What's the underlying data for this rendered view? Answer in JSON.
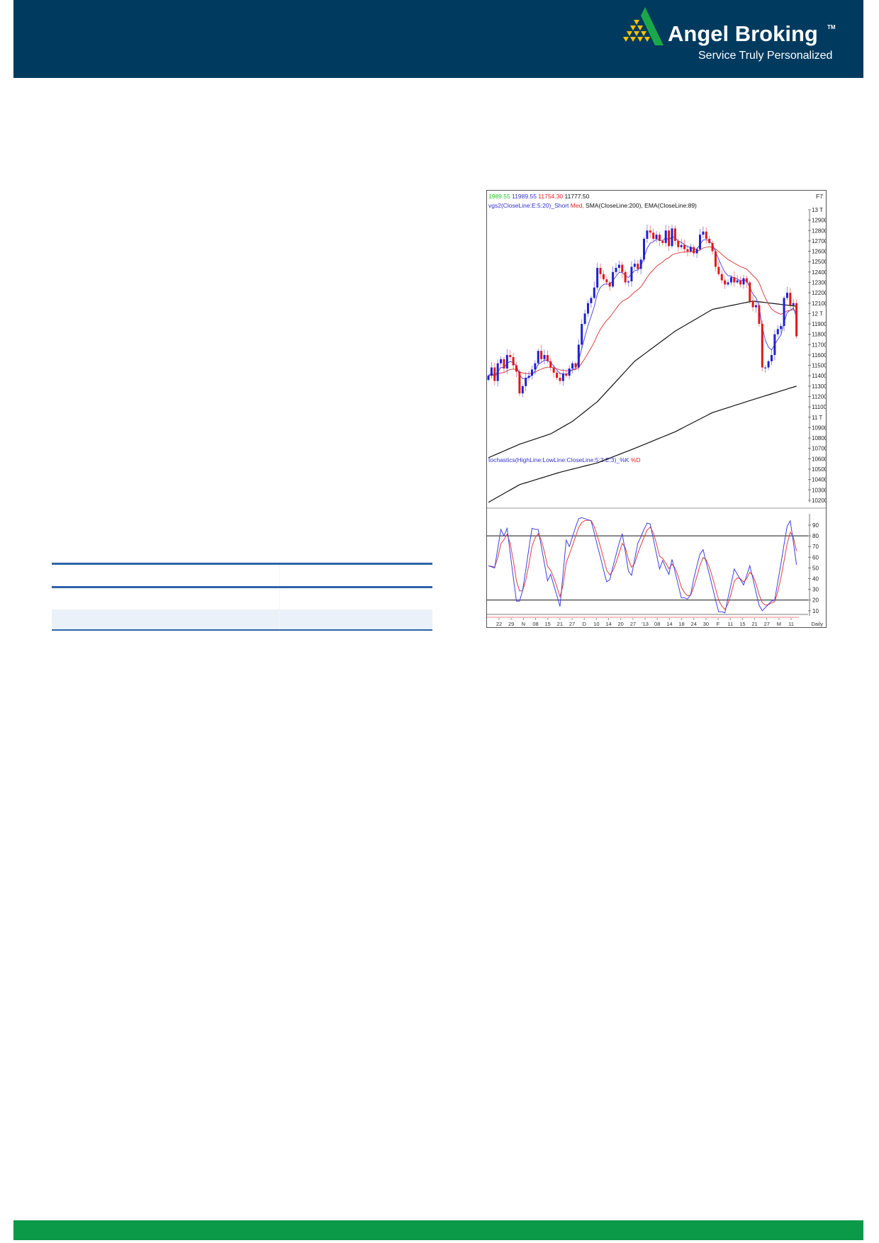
{
  "brand": {
    "name": "Angel Broking",
    "trademark": "TM",
    "tagline": "Service Truly Personalized",
    "colors": {
      "header": "#003a5f",
      "footer": "#0a9a48",
      "logo_green": "#1aa84a",
      "logo_yellow": "#f5c400"
    }
  },
  "table": {
    "rows": [],
    "line_color": "#2e63a8",
    "shade_color": "#eaf1f8"
  },
  "chart_data": {
    "type": "candlestick",
    "header_values": [
      {
        "text": "1989.55",
        "color": "#2fbf2f"
      },
      {
        "text": "11989.55",
        "color": "#3030d0"
      },
      {
        "text": "11754.30",
        "color": "#e02020"
      },
      {
        "text": "11777.50",
        "color": "#111111"
      }
    ],
    "corner_label": "F7",
    "indicator_legend": [
      {
        "text": "vgs2(CloseLine:E:5:20)_Short",
        "color": "#3030d0"
      },
      {
        "text": " Med,",
        "color": "#e02020"
      },
      {
        "text": " SMA(CloseLine:200), EMA(CloseLine:89)",
        "color": "#111111"
      }
    ],
    "price_axis": {
      "range": [
        10150,
        13050
      ],
      "ticks": [
        13000,
        12900,
        12800,
        12700,
        12600,
        12500,
        12400,
        12300,
        12200,
        12100,
        12000,
        11900,
        11800,
        11700,
        11600,
        11500,
        11400,
        11300,
        11200,
        11100,
        11000,
        10900,
        10800,
        10700,
        10600,
        10500,
        10400,
        10300,
        10200
      ],
      "tick_labels": [
        "13 T",
        "12900",
        "12800",
        "12700",
        "12600",
        "12500",
        "12400",
        "12300",
        "12200",
        "12100",
        "12 T",
        "11900",
        "11800",
        "11700",
        "11600",
        "11500",
        "11400",
        "11300",
        "11200",
        "11100",
        "11 T",
        "10900",
        "10800",
        "10700",
        "10600",
        "10500",
        "10400",
        "10300",
        "10200"
      ]
    },
    "closes": [
      11400,
      11480,
      11350,
      11520,
      11560,
      11470,
      11600,
      11580,
      11500,
      11440,
      11230,
      11300,
      11380,
      11400,
      11460,
      11520,
      11640,
      11560,
      11600,
      11540,
      11480,
      11430,
      11380,
      11350,
      11420,
      11400,
      11470,
      11520,
      11480,
      11700,
      11900,
      12000,
      12100,
      12150,
      12250,
      12440,
      12380,
      12330,
      12300,
      12260,
      12400,
      12440,
      12470,
      12400,
      12300,
      12310,
      12450,
      12480,
      12430,
      12520,
      12720,
      12800,
      12780,
      12720,
      12760,
      12700,
      12680,
      12800,
      12650,
      12820,
      12700,
      12640,
      12660,
      12620,
      12600,
      12640,
      12580,
      12620,
      12760,
      12790,
      12720,
      12680,
      12600,
      12450,
      12380,
      12320,
      12280,
      12300,
      12350,
      12300,
      12320,
      12280,
      12340,
      12300,
      12120,
      12060,
      12080,
      11900,
      11480,
      11480,
      11540,
      11600,
      11800,
      11850,
      11880,
      12150,
      12200,
      12080,
      12100,
      11780
    ],
    "ema89": {
      "index": [
        0,
        10,
        20,
        27,
        35,
        47,
        60,
        72,
        85,
        99
      ],
      "values": [
        10610,
        10740,
        10840,
        10960,
        11150,
        11540,
        11830,
        12040,
        12120,
        12070
      ]
    },
    "sma200": {
      "index": [
        0,
        10,
        23,
        35,
        47,
        60,
        72,
        85,
        99
      ],
      "values": [
        10180,
        10350,
        10470,
        10560,
        10700,
        10860,
        11045,
        11170,
        11300
      ]
    },
    "colors": {
      "up": "#2020d0",
      "down": "#e01818",
      "short_ma": "#5050e0",
      "med_ma": "#e04040",
      "long_ma": "#111111"
    },
    "stochastics": {
      "legend": [
        {
          "text": "tochastics(HighLine:LowLine:CloseLine:5:3:E:3)_%K",
          "color": "#3030d0"
        },
        {
          "text": " %D",
          "color": "#e02020"
        }
      ],
      "range": [
        5,
        97
      ],
      "ticks": [
        90,
        80,
        70,
        60,
        50,
        40,
        30,
        20,
        10
      ],
      "levels": [
        80,
        20
      ],
      "k": [
        52,
        51,
        50,
        68,
        86,
        80,
        87,
        64,
        41,
        19,
        19,
        29,
        48,
        68,
        87,
        86,
        86,
        70,
        54,
        38,
        44,
        34,
        24,
        14,
        45,
        76,
        70,
        79,
        88,
        96,
        97,
        96,
        95,
        94,
        83,
        71,
        60,
        48,
        37,
        39,
        51,
        62,
        73,
        82,
        65,
        47,
        43,
        58,
        73,
        79,
        86,
        92,
        91,
        77,
        63,
        49,
        57,
        50,
        44,
        58,
        46,
        34,
        22,
        22,
        21,
        25,
        40,
        52,
        63,
        67,
        55,
        44,
        32,
        20,
        9,
        9,
        8,
        22,
        35,
        49,
        44,
        39,
        34,
        43,
        52,
        40,
        27,
        15,
        10,
        13,
        16,
        19,
        20,
        37,
        54,
        72,
        89,
        94,
        74,
        53
      ]
    },
    "x_axis": {
      "tick_labels": [
        "22",
        "29",
        "N",
        "08",
        "15",
        "21",
        "27",
        "D",
        "10",
        "14",
        "20",
        "27",
        "'13",
        "08",
        "14",
        "18",
        "24",
        "30",
        "F",
        "11",
        "15",
        "21",
        "27",
        "M",
        "11"
      ],
      "period_label": "Daily"
    }
  }
}
